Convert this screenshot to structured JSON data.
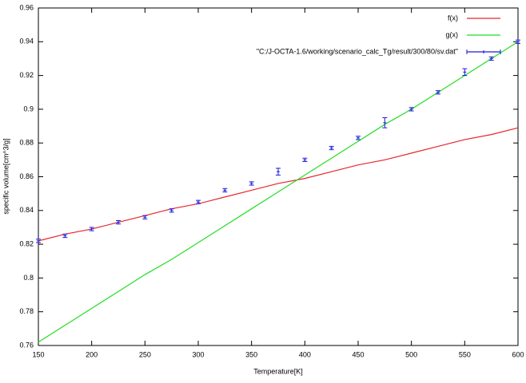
{
  "chart_data": {
    "type": "line",
    "x_label": "Temperature[K]",
    "y_label": "specific volume[cm^3/g]",
    "x": [
      150,
      175,
      200,
      225,
      250,
      275,
      300,
      325,
      350,
      375,
      400,
      425,
      450,
      475,
      500,
      525,
      550,
      575,
      600
    ],
    "series": [
      {
        "name": "f(x)",
        "color": "#e8262a",
        "values": [
          0.822,
          0.826,
          0.829,
          0.833,
          0.837,
          0.841,
          0.844,
          0.848,
          0.852,
          0.856,
          0.859,
          0.863,
          0.867,
          0.87,
          0.874,
          0.878,
          0.882,
          0.885,
          0.889
        ]
      },
      {
        "name": "g(x)",
        "color": "#22dd22",
        "values": [
          0.762,
          0.772,
          0.782,
          0.792,
          0.802,
          0.811,
          0.821,
          0.831,
          0.841,
          0.851,
          0.861,
          0.871,
          0.881,
          0.891,
          0.9,
          0.91,
          0.92,
          0.93,
          0.94
        ]
      },
      {
        "name": "\"C:/J-OCTA-1.6/working/scenario_calc_Tg/result/300/80/sv.dat\"",
        "color": "#1a1ad8",
        "values": [
          0.822,
          0.825,
          0.829,
          0.833,
          0.836,
          0.84,
          0.845,
          0.852,
          0.856,
          0.863,
          0.87,
          0.877,
          0.883,
          0.892,
          0.9,
          0.91,
          0.922,
          0.93,
          0.94
        ],
        "errors": [
          0.001,
          0.001,
          0.001,
          0.001,
          0.001,
          0.001,
          0.001,
          0.001,
          0.001,
          0.002,
          0.001,
          0.001,
          0.001,
          0.003,
          0.001,
          0.001,
          0.002,
          0.001,
          0.001
        ]
      }
    ],
    "xlim": [
      150,
      600
    ],
    "xticks": [
      150,
      200,
      250,
      300,
      350,
      400,
      450,
      500,
      550,
      600
    ],
    "ylim": [
      0.76,
      0.96
    ],
    "yticks": [
      0.76,
      0.78,
      0.8,
      0.82,
      0.84,
      0.86,
      0.88,
      0.9,
      0.92,
      0.94,
      0.96
    ],
    "legend": "top-right",
    "grid": false
  }
}
